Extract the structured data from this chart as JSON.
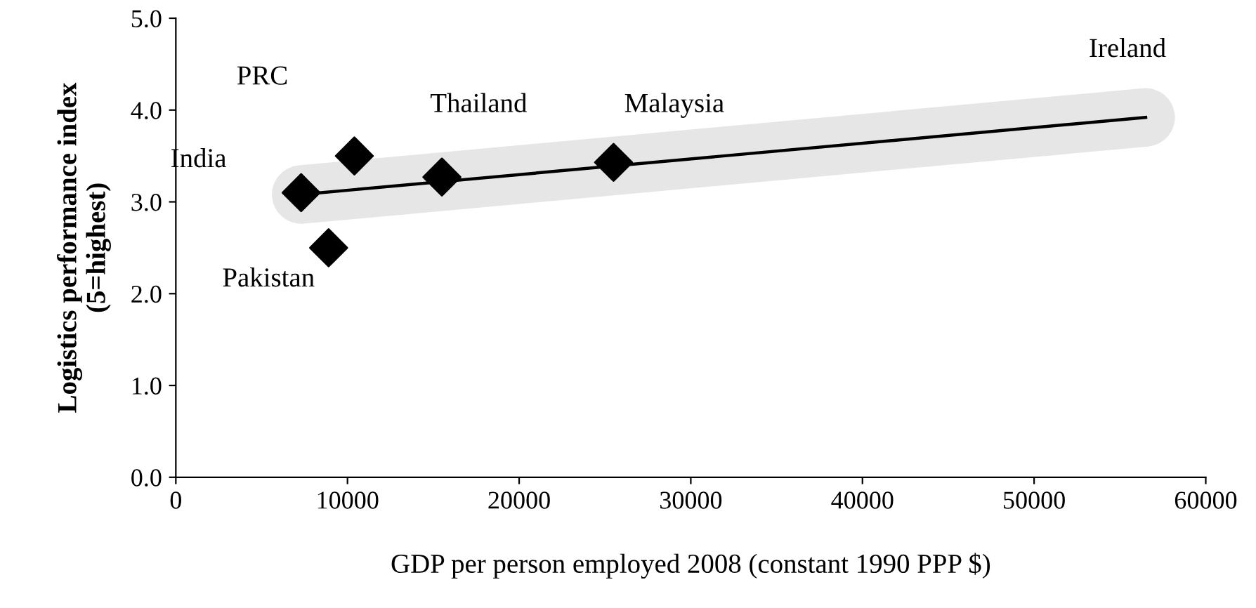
{
  "chart_data": {
    "type": "scatter",
    "xlabel": "GDP per person employed 2008 (constant 1990 PPP $)",
    "ylabel": "Logistics performance index\n(5=highest)",
    "x": [
      7300,
      8900,
      10400,
      15500,
      25500
    ],
    "series": [
      {
        "color": "#000000",
        "marker": "diamond",
        "values": [
          3.1,
          2.5,
          3.5,
          3.27,
          3.43
        ]
      },
      {
        "type": "line",
        "color": "#000000",
        "x": [
          7300,
          56500
        ],
        "values": [
          3.08,
          3.92
        ]
      }
    ],
    "annotations": [
      "India",
      "Pakistan",
      "PRC",
      "Thailand",
      "Malaysia",
      "Ireland"
    ],
    "xlim": [
      0,
      60000
    ],
    "xticks": [
      0,
      10000,
      20000,
      30000,
      40000,
      50000,
      60000
    ],
    "ylim": [
      0,
      5
    ],
    "yticks": [
      {
        "value": 0,
        "label": "0.0"
      },
      {
        "value": 1,
        "label": "1.0"
      },
      {
        "value": 2,
        "label": "2.0"
      },
      {
        "value": 3,
        "label": "3.0"
      },
      {
        "value": 4,
        "label": "4.0"
      },
      {
        "value": 5,
        "label": "5.0"
      }
    ],
    "grid": false,
    "legend": false
  }
}
